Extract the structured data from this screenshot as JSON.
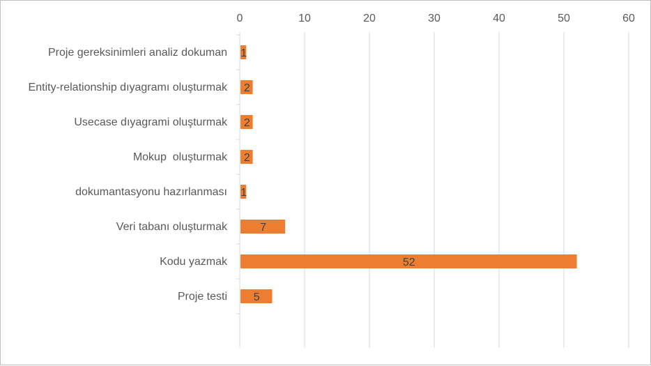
{
  "chart_data": {
    "type": "bar",
    "orientation": "horizontal",
    "categories": [
      "Proje gereksinimleri analiz dokuman",
      "Entity-relationship dıyagramı oluşturmak",
      "Usecase dıyagrami oluşturmak",
      "Mokup  oluşturmak",
      "dokumantasyonu hazırlanması",
      "Veri tabanı oluşturmak",
      "Kodu yazmak",
      "Proje testi"
    ],
    "values": [
      1,
      2,
      2,
      2,
      1,
      7,
      52,
      5
    ],
    "xlim": [
      0,
      60
    ],
    "xticks": [
      0,
      10,
      20,
      30,
      40,
      50,
      60
    ],
    "x_axis_position": "top",
    "grid": true,
    "legend": "none",
    "data_labels": true,
    "title": "",
    "xlabel": "",
    "ylabel": "",
    "colors": {
      "bar": "#ED7D31",
      "grid": "#D9D9D9",
      "text": "#595959",
      "label": "#404040"
    }
  }
}
